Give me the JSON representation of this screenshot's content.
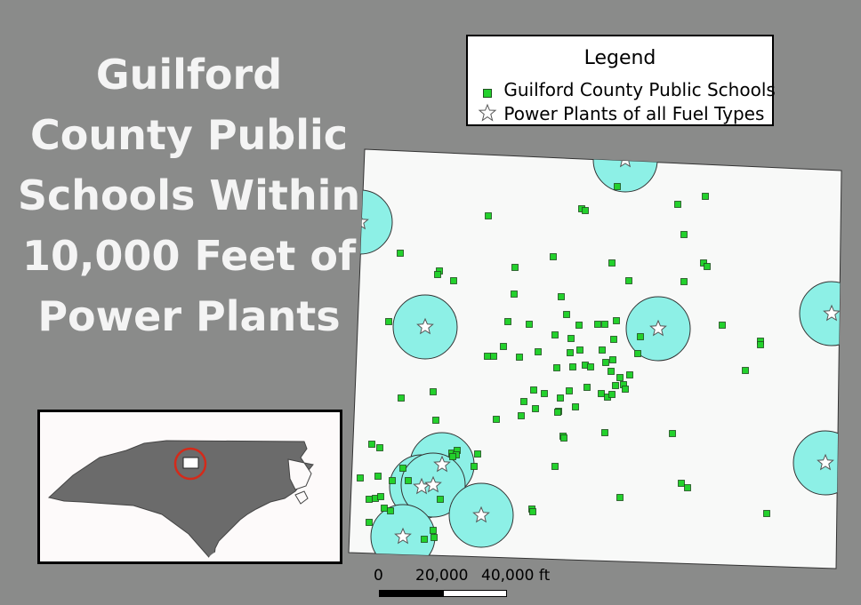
{
  "title_lines": [
    "Guilford",
    "County Public",
    "Schools Within",
    "10,000 Feet of",
    "Power Plants"
  ],
  "legend": {
    "title": "Legend",
    "schools_label": "Guilford County Public Schools",
    "plants_label": "Power Plants of all Fuel Types",
    "school_icon": "green-square",
    "plant_icon": "star-icon"
  },
  "scale": {
    "label_0": "0",
    "label_1": "20,000",
    "label_2": "40,000 ft"
  },
  "colors": {
    "background": "#8a8b8a",
    "school": "#23d12c",
    "buffer": "#8df0e6",
    "inset_state": "#6b6b6b",
    "locator_ring": "#d42a1a"
  }
}
